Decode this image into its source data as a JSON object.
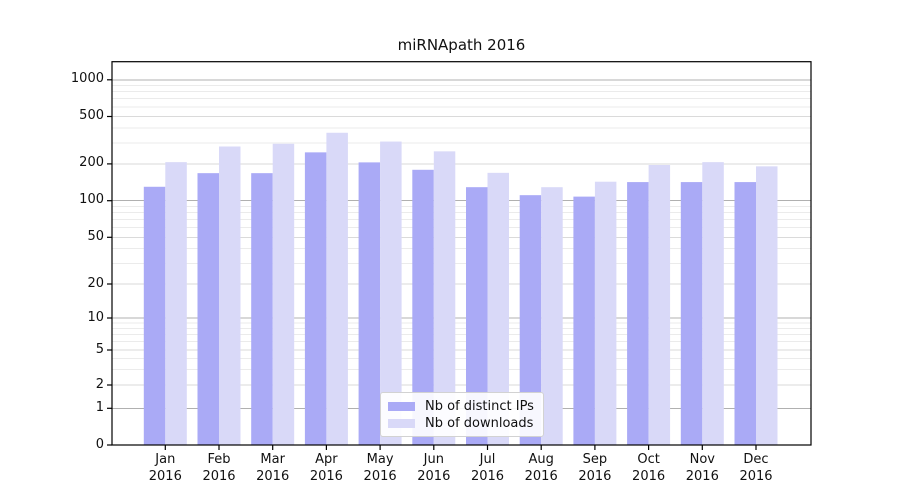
{
  "chart_data": {
    "type": "bar",
    "title": "miRNApath 2016",
    "categories": [
      "Jan",
      "Feb",
      "Mar",
      "Apr",
      "May",
      "Jun",
      "Jul",
      "Aug",
      "Sep",
      "Oct",
      "Nov",
      "Dec"
    ],
    "year_label": "2016",
    "series": [
      {
        "name": "Nb of distinct IPs",
        "color": "#aaaaf6",
        "values": [
          130,
          168,
          168,
          250,
          206,
          179,
          129,
          111,
          108,
          142,
          142,
          142
        ]
      },
      {
        "name": "Nb of downloads",
        "color": "#d9d9f8",
        "values": [
          207,
          280,
          295,
          365,
          308,
          255,
          169,
          129,
          143,
          196,
          207,
          191
        ]
      }
    ],
    "yscale": "symlog",
    "y_ticks": [
      0,
      1,
      2,
      5,
      10,
      20,
      50,
      100,
      200,
      500,
      1000
    ],
    "y_minor_ticks": [
      3,
      4,
      6,
      7,
      8,
      9,
      30,
      40,
      60,
      70,
      80,
      90,
      300,
      400,
      600,
      700,
      800,
      900
    ],
    "ylim": [
      0,
      1400
    ],
    "grid": true,
    "legend_position": "lower center",
    "colors": {
      "grid_power10": "#b0b0b0",
      "grid_major": "#dadada",
      "grid_minor": "#ebebeb",
      "frame": "#000000",
      "background": "#ffffff"
    }
  }
}
